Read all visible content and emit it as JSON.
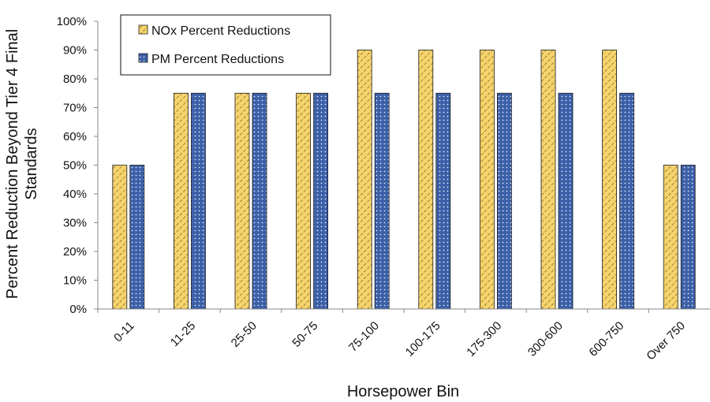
{
  "chart_data": {
    "type": "bar",
    "categories": [
      "0-11",
      "11-25",
      "25-50",
      "50-75",
      "75-100",
      "100-175",
      "175-300",
      "300-600",
      "600-750",
      "Over 750"
    ],
    "series": [
      {
        "name": "NOx Percent Reductions",
        "values": [
          50,
          75,
          75,
          75,
          90,
          90,
          90,
          90,
          90,
          50
        ],
        "color": "#F6D36B"
      },
      {
        "name": "PM Percent Reductions",
        "values": [
          50,
          75,
          75,
          75,
          75,
          75,
          75,
          75,
          75,
          50
        ],
        "color": "#3B5FA8"
      }
    ],
    "xlabel": "Horsepower Bin",
    "ylabel": [
      "Percent Reduction Beyond Tier 4 Final",
      "Standards"
    ],
    "ylim": [
      0,
      100
    ],
    "yticks": [
      0,
      10,
      20,
      30,
      40,
      50,
      60,
      70,
      80,
      90,
      100
    ],
    "ytick_labels": [
      "0%",
      "10%",
      "20%",
      "30%",
      "40%",
      "50%",
      "60%",
      "70%",
      "80%",
      "90%",
      "100%"
    ],
    "grid": false,
    "legend": "top-left"
  }
}
